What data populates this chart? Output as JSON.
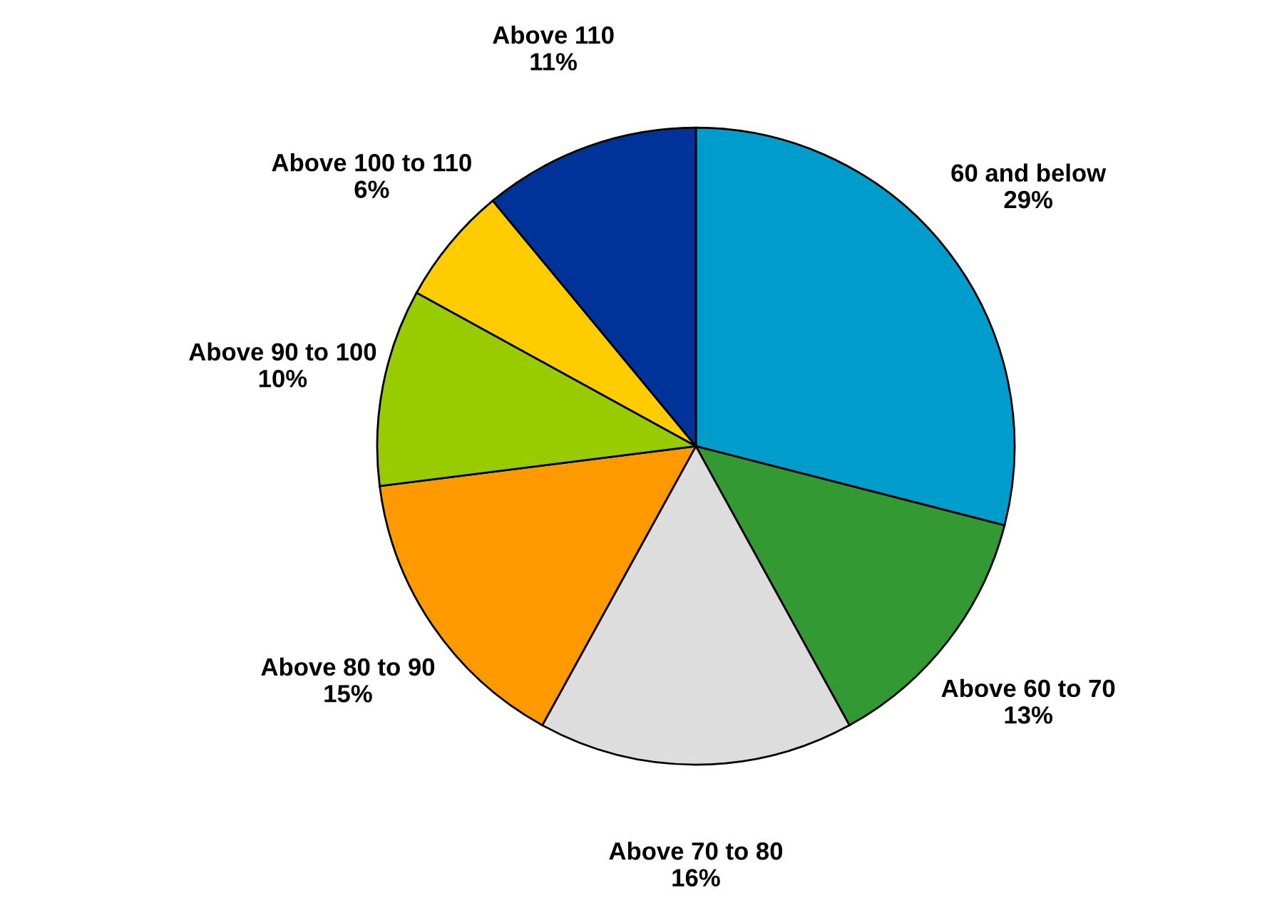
{
  "chart_data": {
    "type": "pie",
    "categories": [
      "60 and below",
      "Above 60 to 70",
      "Above 70 to 80",
      "Above 80 to 90",
      "Above 90 to 100",
      "Above 100 to 110",
      "Above 110"
    ],
    "values": [
      29,
      13,
      16,
      15,
      10,
      6,
      11
    ],
    "value_labels": [
      "29%",
      "13%",
      "16%",
      "15%",
      "10%",
      "6%",
      "11%"
    ],
    "colors": [
      "#009ccc",
      "#339933",
      "#dddddd",
      "#ff9900",
      "#99cc00",
      "#ffcc00",
      "#003399"
    ]
  }
}
